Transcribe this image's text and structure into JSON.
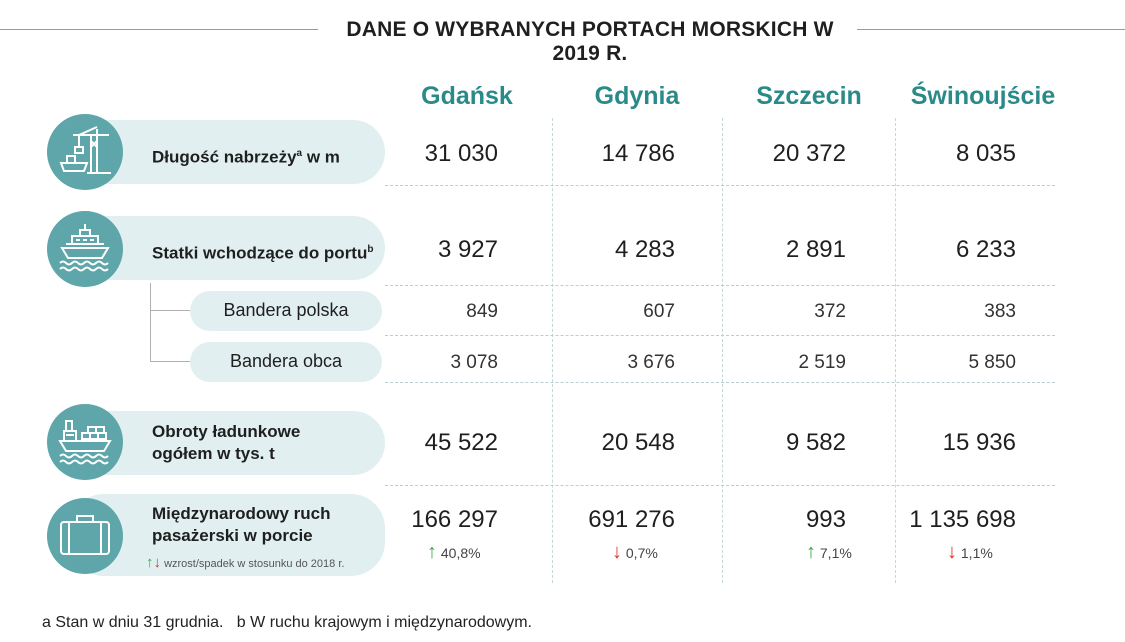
{
  "title": "DANE O WYBRANYCH PORTACH MORSKICH W 2019 R.",
  "cities": [
    "Gdańsk",
    "Gdynia",
    "Szczecin",
    "Świnoujście"
  ],
  "rows": {
    "quay": {
      "label": "Długość nabrzeży",
      "sup": "a",
      "unit": "w m",
      "icon": "crane-ship-icon",
      "values": [
        "31 030",
        "14 786",
        "20 372",
        "8 035"
      ]
    },
    "ships": {
      "label": "Statki wchodzące do portu",
      "sup": "b",
      "icon": "ship-on-waves-icon",
      "values": [
        "3 927",
        "4 283",
        "2 891",
        "6 233"
      ]
    },
    "flag_pl": {
      "label": "Bandera polska",
      "values": [
        "849",
        "607",
        "372",
        "383"
      ]
    },
    "flag_foreign": {
      "label": "Bandera obca",
      "values": [
        "3 078",
        "3 676",
        "2 519",
        "5 850"
      ]
    },
    "cargo": {
      "label_line1": "Obroty ładunkowe",
      "label_line2": "ogółem w tys. t",
      "icon": "cargo-ship-icon",
      "values": [
        "45 522",
        "20 548",
        "9 582",
        "15 936"
      ]
    },
    "passengers": {
      "label_line1": "Międzynarodowy ruch",
      "label_line2": "pasażerski w porcie",
      "icon": "suitcase-icon",
      "values": [
        "166 297",
        "691 276",
        "993",
        "1 135 698"
      ],
      "changes": [
        {
          "arrow": "↑",
          "direction": "up",
          "text": "40,8%"
        },
        {
          "arrow": "↓",
          "direction": "down",
          "text": "0,7%"
        },
        {
          "arrow": "↑",
          "direction": "up",
          "text": "7,1%"
        },
        {
          "arrow": "↓",
          "direction": "down",
          "text": "1,1%"
        }
      ],
      "legend_arrows": "↑↓",
      "legend_text": "wzrost/spadek w stosunku do 2018 r."
    }
  },
  "footnote": "a Stan w dniu 31 grudnia.   b W ruchu krajowym i międzynarodowym.",
  "colors": {
    "accent": "#2a8a89",
    "icon_circle": "#5ea6a9",
    "pill": "#e1eff1",
    "up": "#3aa84a",
    "down": "#d8332f"
  }
}
